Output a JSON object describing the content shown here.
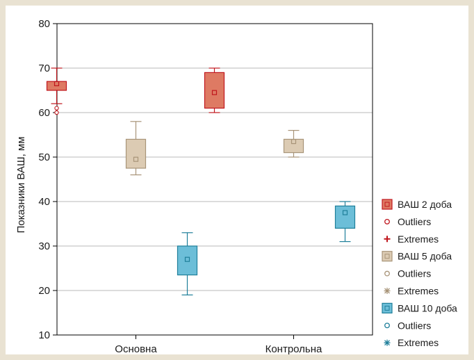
{
  "chart_data": {
    "type": "boxplot",
    "title": "",
    "xlabel": "",
    "ylabel": "Показники ВАШ, мм",
    "ylim": [
      10,
      80
    ],
    "yticks": [
      10,
      20,
      30,
      40,
      50,
      60,
      70,
      80
    ],
    "grid": true,
    "legend_position": "right",
    "categories": [
      "Основна",
      "Контрольна"
    ],
    "series": [
      {
        "name": "ВАШ 2 доба",
        "fill": "#de7a63",
        "stroke": "#c0161d",
        "boxes": [
          {
            "whisker_low": 62,
            "q1": 65,
            "median": 66.5,
            "q3": 67,
            "whisker_high": 70,
            "outliers": [
              60,
              61
            ]
          },
          {
            "whisker_low": 60,
            "q1": 61,
            "median": 64.5,
            "q3": 69,
            "whisker_high": 70,
            "outliers": []
          }
        ]
      },
      {
        "name": "ВАШ 5 доба",
        "fill": "#dccbb3",
        "stroke": "#a89478",
        "boxes": [
          {
            "whisker_low": 46,
            "q1": 47.5,
            "median": 49.5,
            "q3": 54,
            "whisker_high": 58,
            "outliers": []
          },
          {
            "whisker_low": 50,
            "q1": 51,
            "median": 53.5,
            "q3": 54,
            "whisker_high": 56,
            "outliers": []
          }
        ]
      },
      {
        "name": "ВАШ 10 доба",
        "fill": "#6cbed8",
        "stroke": "#1f7f9a",
        "boxes": [
          {
            "whisker_low": 19,
            "q1": 23.5,
            "median": 27,
            "q3": 30,
            "whisker_high": 33,
            "outliers": []
          },
          {
            "whisker_low": 31,
            "q1": 34,
            "median": 37.5,
            "q3": 39,
            "whisker_high": 40,
            "outliers": []
          }
        ]
      }
    ],
    "legend_items": [
      {
        "kind": "box",
        "series": 0,
        "label": "ВАШ 2 доба"
      },
      {
        "kind": "outlier",
        "series": 0,
        "label": "Outliers"
      },
      {
        "kind": "extreme",
        "series": 0,
        "label": "Extremes"
      },
      {
        "kind": "box",
        "series": 1,
        "label": "ВАШ 5 доба"
      },
      {
        "kind": "outlier",
        "series": 1,
        "label": "Outliers"
      },
      {
        "kind": "extreme",
        "series": 1,
        "label": "Extremes"
      },
      {
        "kind": "box",
        "series": 2,
        "label": "ВАШ 10 доба"
      },
      {
        "kind": "outlier",
        "series": 2,
        "label": "Outliers"
      },
      {
        "kind": "extreme",
        "series": 2,
        "label": "Extremes"
      }
    ]
  }
}
